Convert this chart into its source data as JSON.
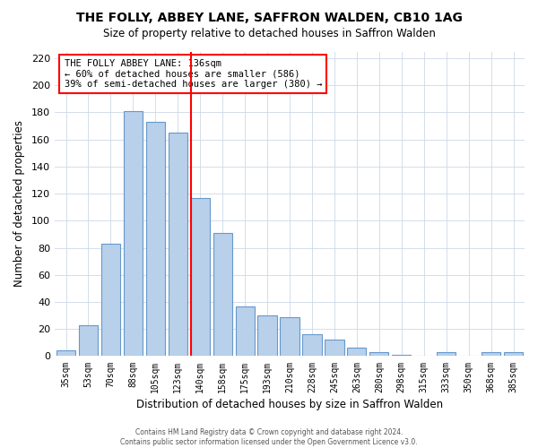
{
  "title": "THE FOLLY, ABBEY LANE, SAFFRON WALDEN, CB10 1AG",
  "subtitle": "Size of property relative to detached houses in Saffron Walden",
  "xlabel": "Distribution of detached houses by size in Saffron Walden",
  "ylabel": "Number of detached properties",
  "bar_labels": [
    "35sqm",
    "53sqm",
    "70sqm",
    "88sqm",
    "105sqm",
    "123sqm",
    "140sqm",
    "158sqm",
    "175sqm",
    "193sqm",
    "210sqm",
    "228sqm",
    "245sqm",
    "263sqm",
    "280sqm",
    "298sqm",
    "315sqm",
    "333sqm",
    "350sqm",
    "368sqm",
    "385sqm"
  ],
  "bar_values": [
    4,
    23,
    83,
    181,
    173,
    165,
    117,
    91,
    37,
    30,
    29,
    16,
    12,
    6,
    3,
    1,
    0,
    3,
    0,
    3,
    3
  ],
  "bar_color": "#b8d0ea",
  "bar_edge_color": "#6699cc",
  "reference_line_idx": 6,
  "ylim": [
    0,
    225
  ],
  "yticks": [
    0,
    20,
    40,
    60,
    80,
    100,
    120,
    140,
    160,
    180,
    200,
    220
  ],
  "annotation_title": "THE FOLLY ABBEY LANE: 136sqm",
  "annotation_line1": "← 60% of detached houses are smaller (586)",
  "annotation_line2": "39% of semi-detached houses are larger (380) →",
  "footer_line1": "Contains HM Land Registry data © Crown copyright and database right 2024.",
  "footer_line2": "Contains public sector information licensed under the Open Government Licence v3.0."
}
